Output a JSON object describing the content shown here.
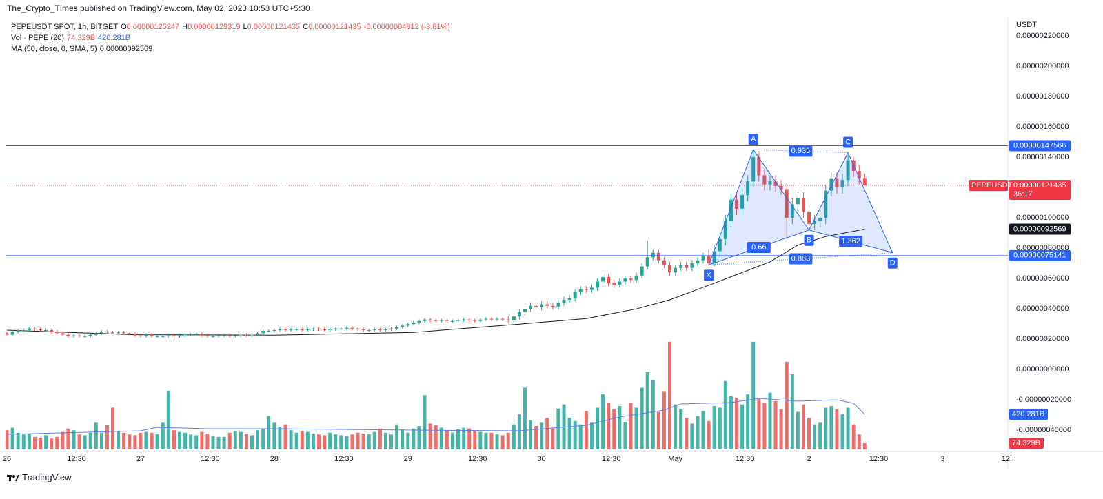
{
  "publisher": "The_Crypto_TImes published on TradingView.com, May 02, 2023 10:53 UTC+5:30",
  "legend": {
    "symbol": "PEPEUSDT SPOT, 1h, BITGET",
    "ohlc": [
      {
        "key": "O",
        "value": "0.00000126247"
      },
      {
        "key": "H",
        "value": "0.00000129319"
      },
      {
        "key": "L",
        "value": "0.00000121435"
      },
      {
        "key": "C",
        "value": "0.00000121435"
      }
    ],
    "change": "-0.00000004812 (-3.81%)",
    "volume": {
      "name": "Vol · PEPE (20)",
      "values": [
        "74.329B",
        "420.281B"
      ]
    },
    "ma": {
      "name": "MA (50, close, 0, SMA, 5)",
      "value": "0.00000092569"
    }
  },
  "chart_data": {
    "type": "candlestick",
    "y_unit": "USDT",
    "colors": {
      "up": "#26a69a",
      "down": "#ef5350"
    },
    "xlim": [
      -0.25,
      179.7
    ],
    "xticks": [
      {
        "value": 0,
        "label": "26"
      },
      {
        "value": 12.5,
        "label": "12:30"
      },
      {
        "value": 24,
        "label": "27"
      },
      {
        "value": 36.5,
        "label": "12:30"
      },
      {
        "value": 48,
        "label": "28"
      },
      {
        "value": 60.5,
        "label": "12:30"
      },
      {
        "value": 72,
        "label": "29"
      },
      {
        "value": 84.5,
        "label": "12:30"
      },
      {
        "value": 96,
        "label": "30"
      },
      {
        "value": 108.5,
        "label": "12:30"
      },
      {
        "value": 120,
        "label": "May"
      },
      {
        "value": 132.5,
        "label": "12:30"
      },
      {
        "value": 144,
        "label": "2"
      },
      {
        "value": 156.5,
        "label": "12:30"
      },
      {
        "value": 168,
        "label": "3"
      },
      {
        "value": 179.5,
        "label": "12:"
      }
    ],
    "ylim": [
      -5.4e-07,
      2.314e-06
    ],
    "yticks": [
      {
        "value": 2.2e-06,
        "label": "0.00000220000"
      },
      {
        "value": 2e-06,
        "label": "0.00000200000"
      },
      {
        "value": 1.8e-06,
        "label": "0.00000180000"
      },
      {
        "value": 1.6e-06,
        "label": "0.00000160000"
      },
      {
        "value": 1.4e-06,
        "label": "0.00000140000"
      },
      {
        "value": 1.2e-06,
        "label": "0.00000120000"
      },
      {
        "value": 1e-06,
        "label": "0.00000100000"
      },
      {
        "value": 8e-07,
        "label": "0.00000080000"
      },
      {
        "value": 6e-07,
        "label": "0.00000060000"
      },
      {
        "value": 4e-07,
        "label": "0.00000040000"
      },
      {
        "value": 2e-07,
        "label": "0.00000020000"
      },
      {
        "value": 0,
        "label": "0.00000000000"
      },
      {
        "value": -2e-07,
        "label": "-0.00000020000"
      },
      {
        "value": -4e-07,
        "label": "-0.00000040000"
      }
    ],
    "y2lim": [
      0,
      1330
    ],
    "grid": true,
    "x": [
      0,
      1,
      2,
      3,
      4,
      5,
      6,
      7,
      8,
      9,
      10,
      11,
      12,
      13,
      14,
      15,
      16,
      17,
      18,
      19,
      20,
      21,
      22,
      23,
      24,
      25,
      26,
      27,
      28,
      29,
      30,
      31,
      32,
      33,
      34,
      35,
      36,
      37,
      38,
      39,
      40,
      41,
      42,
      43,
      44,
      45,
      46,
      47,
      48,
      49,
      50,
      51,
      52,
      53,
      54,
      55,
      56,
      57,
      58,
      59,
      60,
      61,
      62,
      63,
      64,
      65,
      66,
      67,
      68,
      69,
      70,
      71,
      72,
      73,
      74,
      75,
      76,
      77,
      78,
      79,
      80,
      81,
      82,
      83,
      84,
      85,
      86,
      87,
      88,
      89,
      90,
      91,
      92,
      93,
      94,
      95,
      96,
      97,
      98,
      99,
      100,
      101,
      102,
      103,
      104,
      105,
      106,
      107,
      108,
      109,
      110,
      111,
      112,
      113,
      114,
      115,
      116,
      117,
      118,
      119,
      120,
      121,
      122,
      123,
      124,
      125,
      126,
      127,
      128,
      129,
      130,
      131,
      132,
      133,
      134,
      135,
      136,
      137,
      138,
      139,
      140,
      141,
      142,
      143,
      144,
      145,
      146,
      147,
      148,
      149,
      150,
      151,
      152,
      153,
      154
    ],
    "open": [
      2.4e-07,
      2.3e-07,
      2.5e-07,
      2.6e-07,
      2.6e-07,
      2.7e-07,
      2.65e-07,
      2.6e-07,
      2.6e-07,
      2.5e-07,
      2.4e-07,
      2.3e-07,
      2.2e-07,
      2.25e-07,
      2.2e-07,
      2.2e-07,
      2.3e-07,
      2.4e-07,
      2.5e-07,
      2.45e-07,
      2.4e-07,
      2.45e-07,
      2.4e-07,
      2.35e-07,
      2.25e-07,
      2.2e-07,
      2.3e-07,
      2.2e-07,
      2.2e-07,
      2.2e-07,
      2.25e-07,
      2.2e-07,
      2.25e-07,
      2.3e-07,
      2.3e-07,
      2.35e-07,
      2.25e-07,
      2.2e-07,
      2.2e-07,
      2.25e-07,
      2.25e-07,
      2.2e-07,
      2.25e-07,
      2.3e-07,
      2.25e-07,
      2.3e-07,
      2.4e-07,
      2.55e-07,
      2.55e-07,
      2.6e-07,
      2.65e-07,
      2.6e-07,
      2.65e-07,
      2.65e-07,
      2.6e-07,
      2.65e-07,
      2.7e-07,
      2.65e-07,
      2.6e-07,
      2.65e-07,
      2.7e-07,
      2.7e-07,
      2.75e-07,
      2.7e-07,
      2.65e-07,
      2.6e-07,
      2.6e-07,
      2.65e-07,
      2.6e-07,
      2.65e-07,
      2.7e-07,
      2.8e-07,
      2.9e-07,
      3e-07,
      3.1e-07,
      3.2e-07,
      3.3e-07,
      3.25e-07,
      3.2e-07,
      3.25e-07,
      3.2e-07,
      3.2e-07,
      3.25e-07,
      3.3e-07,
      3.25e-07,
      3.2e-07,
      3.3e-07,
      3.35e-07,
      3.3e-07,
      3.35e-07,
      3.3e-07,
      3.25e-07,
      3.5e-07,
      3.8e-07,
      4e-07,
      4.2e-07,
      4.1e-07,
      4.3e-07,
      4.2e-07,
      4.15e-07,
      4.4e-07,
      4.6e-07,
      4.7e-07,
      5.1e-07,
      5.3e-07,
      5.25e-07,
      5.4e-07,
      5.8e-07,
      6.1e-07,
      5.7e-07,
      5.6e-07,
      5.8e-07,
      6e-07,
      5.9e-07,
      6.2e-07,
      6.8e-07,
      7.4e-07,
      7.7e-07,
      7.2e-07,
      6.9e-07,
      6.4e-07,
      6.7e-07,
      6.9e-07,
      6.7e-07,
      7e-07,
      7.2e-07,
      7.5e-07,
      7e-07,
      7.8e-07,
      8.6e-07,
      9.8e-07,
      1.12e-06,
      1.06e-06,
      1.15e-06,
      1.24e-06,
      1.4e-06,
      1.28e-06,
      1.22e-06,
      1.24e-06,
      1.21e-06,
      1.19e-06,
      1e-06,
      1.09e-06,
      1.13e-06,
      1.04e-06,
      9.6e-07,
      9.8e-07,
      1e-06,
      1.18e-06,
      1.26e-06,
      1.2e-06,
      1.25e-06,
      1.38e-06,
      1.31e-06,
      1.26247e-06
    ],
    "high": [
      2.5e-07,
      2.6e-07,
      2.7e-07,
      2.7e-07,
      2.8e-07,
      2.8e-07,
      2.75e-07,
      2.7e-07,
      2.7e-07,
      2.6e-07,
      2.5e-07,
      2.4e-07,
      2.35e-07,
      2.35e-07,
      2.3e-07,
      2.4e-07,
      2.5e-07,
      2.6e-07,
      2.6e-07,
      2.55e-07,
      2.55e-07,
      2.55e-07,
      2.5e-07,
      2.45e-07,
      2.35e-07,
      2.4e-07,
      2.4e-07,
      2.3e-07,
      2.3e-07,
      2.35e-07,
      2.35e-07,
      2.35e-07,
      2.4e-07,
      2.4e-07,
      2.45e-07,
      2.45e-07,
      2.35e-07,
      2.3e-07,
      2.35e-07,
      2.35e-07,
      2.35e-07,
      2.35e-07,
      2.4e-07,
      2.4e-07,
      2.4e-07,
      2.5e-07,
      2.65e-07,
      2.65e-07,
      2.7e-07,
      2.75e-07,
      2.75e-07,
      2.75e-07,
      2.75e-07,
      2.75e-07,
      2.75e-07,
      2.8e-07,
      2.8e-07,
      2.75e-07,
      2.75e-07,
      2.8e-07,
      2.8e-07,
      2.85e-07,
      2.85e-07,
      2.8e-07,
      2.75e-07,
      2.7e-07,
      2.75e-07,
      2.75e-07,
      2.75e-07,
      2.8e-07,
      2.9e-07,
      3e-07,
      3.1e-07,
      3.2e-07,
      3.3e-07,
      3.4e-07,
      3.4e-07,
      3.35e-07,
      3.35e-07,
      3.35e-07,
      3.3e-07,
      3.35e-07,
      3.4e-07,
      3.4e-07,
      3.35e-07,
      3.4e-07,
      3.45e-07,
      3.45e-07,
      3.45e-07,
      3.45e-07,
      3.5e-07,
      3.7e-07,
      4e-07,
      4.2e-07,
      4.4e-07,
      4.4e-07,
      4.5e-07,
      4.5e-07,
      4.4e-07,
      4.6e-07,
      4.8e-07,
      4.9e-07,
      5.3e-07,
      5.5e-07,
      5.5e-07,
      5.6e-07,
      6e-07,
      6.3e-07,
      6.3e-07,
      5.9e-07,
      6e-07,
      6.2e-07,
      6.2e-07,
      6.4e-07,
      7e-07,
      8.5e-07,
      7.9e-07,
      7.9e-07,
      7.4e-07,
      7.1e-07,
      6.9e-07,
      7.1e-07,
      7.1e-07,
      7.2e-07,
      7.4e-07,
      7.7e-07,
      7.9e-07,
      8.2e-07,
      9e-07,
      1.02e-06,
      1.16e-06,
      1.16e-06,
      1.19e-06,
      1.28e-06,
      1.45e-06,
      1.44e-06,
      1.32e-06,
      1.28e-06,
      1.28e-06,
      1.25e-06,
      1.23e-06,
      1.13e-06,
      1.17e-06,
      1.17e-06,
      1.08e-06,
      1.02e-06,
      1.04e-06,
      1.22e-06,
      1.3e-06,
      1.3e-06,
      1.29e-06,
      1.43e-06,
      1.4e-06,
      1.35e-06,
      1.29319e-06
    ],
    "low": [
      2.2e-07,
      2.2e-07,
      2.4e-07,
      2.5e-07,
      2.5e-07,
      2.55e-07,
      2.5e-07,
      2.5e-07,
      2.4e-07,
      2.3e-07,
      2.2e-07,
      2.1e-07,
      2.1e-07,
      2.1e-07,
      2.1e-07,
      2.1e-07,
      2.2e-07,
      2.3e-07,
      2.35e-07,
      2.3e-07,
      2.3e-07,
      2.3e-07,
      2.25e-07,
      2.15e-07,
      2.1e-07,
      2.1e-07,
      2.1e-07,
      2.1e-07,
      2.1e-07,
      2.1e-07,
      2.1e-07,
      2.1e-07,
      2.15e-07,
      2.2e-07,
      2.2e-07,
      2.15e-07,
      2.1e-07,
      2.1e-07,
      2.1e-07,
      2.15e-07,
      2.1e-07,
      2.1e-07,
      2.15e-07,
      2.15e-07,
      2.15e-07,
      2.2e-07,
      2.3e-07,
      2.45e-07,
      2.45e-07,
      2.5e-07,
      2.5e-07,
      2.5e-07,
      2.55e-07,
      2.5e-07,
      2.5e-07,
      2.55e-07,
      2.55e-07,
      2.5e-07,
      2.5e-07,
      2.55e-07,
      2.6e-07,
      2.6e-07,
      2.6e-07,
      2.55e-07,
      2.5e-07,
      2.5e-07,
      2.5e-07,
      2.5e-07,
      2.5e-07,
      2.55e-07,
      2.6e-07,
      2.7e-07,
      2.8e-07,
      2.9e-07,
      3e-07,
      3.1e-07,
      3.15e-07,
      3.1e-07,
      3.1e-07,
      3.1e-07,
      3.1e-07,
      3.1e-07,
      3.15e-07,
      3.15e-07,
      3.1e-07,
      3.1e-07,
      3.2e-07,
      3.2e-07,
      3.2e-07,
      3.2e-07,
      3.05e-07,
      3.05e-07,
      3.3e-07,
      3.6e-07,
      3.8e-07,
      3.9e-07,
      3.9e-07,
      4e-07,
      3.95e-07,
      3.95e-07,
      4.2e-07,
      4.4e-07,
      4.5e-07,
      4.9e-07,
      5.05e-07,
      5.05e-07,
      5.2e-07,
      5.6e-07,
      5.5e-07,
      5.4e-07,
      5.4e-07,
      5.6e-07,
      5.7e-07,
      5.7e-07,
      6e-07,
      6.6e-07,
      7.2e-07,
      7e-07,
      6.7e-07,
      6.2e-07,
      6.2e-07,
      6.5e-07,
      6.5e-07,
      6.5e-07,
      6.8e-07,
      7e-07,
      6.86e-07,
      6.8e-07,
      7.4e-07,
      8.2e-07,
      9.4e-07,
      1.02e-06,
      1.02e-06,
      1.11e-06,
      1.2e-06,
      1.24e-06,
      1.18e-06,
      1.18e-06,
      1.17e-06,
      1.15e-06,
      8.6e-07,
      9.6e-07,
      1.05e-06,
      1e-06,
      9.2e-07,
      9.2e-07,
      9.4e-07,
      9.6e-07,
      1.14e-06,
      1.16e-06,
      1.16e-06,
      1.21e-06,
      1.27e-06,
      1.22e-06,
      1.21435e-06
    ],
    "close": [
      2.3e-07,
      2.5e-07,
      2.6e-07,
      2.6e-07,
      2.7e-07,
      2.65e-07,
      2.6e-07,
      2.6e-07,
      2.5e-07,
      2.4e-07,
      2.3e-07,
      2.2e-07,
      2.25e-07,
      2.2e-07,
      2.2e-07,
      2.3e-07,
      2.4e-07,
      2.5e-07,
      2.45e-07,
      2.4e-07,
      2.45e-07,
      2.4e-07,
      2.35e-07,
      2.25e-07,
      2.2e-07,
      2.3e-07,
      2.2e-07,
      2.2e-07,
      2.2e-07,
      2.25e-07,
      2.2e-07,
      2.25e-07,
      2.3e-07,
      2.3e-07,
      2.35e-07,
      2.25e-07,
      2.2e-07,
      2.2e-07,
      2.25e-07,
      2.25e-07,
      2.2e-07,
      2.25e-07,
      2.3e-07,
      2.25e-07,
      2.3e-07,
      2.4e-07,
      2.55e-07,
      2.55e-07,
      2.6e-07,
      2.65e-07,
      2.6e-07,
      2.65e-07,
      2.65e-07,
      2.6e-07,
      2.65e-07,
      2.7e-07,
      2.65e-07,
      2.6e-07,
      2.65e-07,
      2.7e-07,
      2.7e-07,
      2.75e-07,
      2.7e-07,
      2.65e-07,
      2.6e-07,
      2.6e-07,
      2.65e-07,
      2.6e-07,
      2.65e-07,
      2.7e-07,
      2.8e-07,
      2.9e-07,
      3e-07,
      3.1e-07,
      3.2e-07,
      3.3e-07,
      3.25e-07,
      3.2e-07,
      3.25e-07,
      3.2e-07,
      3.2e-07,
      3.25e-07,
      3.3e-07,
      3.25e-07,
      3.2e-07,
      3.3e-07,
      3.35e-07,
      3.3e-07,
      3.35e-07,
      3.3e-07,
      3.25e-07,
      3.5e-07,
      3.8e-07,
      4e-07,
      4.2e-07,
      4.1e-07,
      4.3e-07,
      4.2e-07,
      4.15e-07,
      4.4e-07,
      4.6e-07,
      4.7e-07,
      5.1e-07,
      5.3e-07,
      5.25e-07,
      5.4e-07,
      5.8e-07,
      6.1e-07,
      5.7e-07,
      5.6e-07,
      5.8e-07,
      6e-07,
      5.9e-07,
      6.2e-07,
      6.8e-07,
      7.4e-07,
      7.7e-07,
      7.2e-07,
      6.9e-07,
      6.4e-07,
      6.7e-07,
      6.9e-07,
      6.7e-07,
      7e-07,
      7.2e-07,
      7.5e-07,
      7e-07,
      7.8e-07,
      8.6e-07,
      9.8e-07,
      1.12e-06,
      1.06e-06,
      1.15e-06,
      1.24e-06,
      1.4e-06,
      1.28e-06,
      1.22e-06,
      1.24e-06,
      1.21e-06,
      1.19e-06,
      1e-06,
      1.09e-06,
      1.13e-06,
      1.04e-06,
      9.6e-07,
      9.8e-07,
      1e-06,
      1.18e-06,
      1.26e-06,
      1.2e-06,
      1.25e-06,
      1.38e-06,
      1.31e-06,
      1.26247e-06,
      1.21435e-06
    ],
    "volume": [
      230,
      260,
      200,
      180,
      190,
      150,
      140,
      170,
      130,
      150,
      210,
      250,
      230,
      180,
      170,
      200,
      320,
      200,
      290,
      500,
      220,
      200,
      180,
      170,
      200,
      210,
      200,
      180,
      320,
      700,
      230,
      210,
      200,
      180,
      170,
      210,
      190,
      160,
      150,
      150,
      200,
      220,
      210,
      190,
      170,
      230,
      250,
      400,
      320,
      270,
      300,
      230,
      200,
      220,
      210,
      190,
      180,
      170,
      200,
      180,
      170,
      160,
      180,
      200,
      190,
      180,
      210,
      250,
      200,
      180,
      300,
      240,
      200,
      250,
      280,
      650,
      310,
      290,
      260,
      230,
      200,
      240,
      260,
      250,
      220,
      210,
      200,
      200,
      180,
      170,
      200,
      300,
      420,
      740,
      350,
      280,
      320,
      380,
      250,
      490,
      540,
      380,
      340,
      300,
      460,
      320,
      500,
      660,
      560,
      480,
      520,
      330,
      560,
      500,
      740,
      925,
      830,
      450,
      690,
      1290,
      540,
      480,
      380,
      310,
      400,
      460,
      340,
      520,
      500,
      820,
      640,
      620,
      540,
      660,
      1290,
      620,
      560,
      680,
      580,
      480,
      1050,
      900,
      450,
      540,
      380,
      300,
      320,
      500,
      520,
      480,
      420,
      500,
      300,
      180,
      74.329
    ],
    "ma": {
      "color": "#131722",
      "x": [
        0,
        23,
        48,
        73,
        92,
        104,
        113,
        119,
        127,
        132,
        137,
        142,
        147,
        154
      ],
      "values": [
        2.6e-07,
        2.3e-07,
        2.27e-07,
        2.45e-07,
        3e-07,
        3.36e-07,
        4e-07,
        4.6e-07,
        5.7e-07,
        6.4e-07,
        7.1e-07,
        8.2e-07,
        8.77e-07,
        9.2569e-07
      ]
    },
    "volume_ma": {
      "color": "#5b7cf5",
      "axis": "y2",
      "x": [
        0,
        24,
        27,
        36,
        48,
        73,
        92,
        104,
        110,
        118,
        121,
        125,
        130,
        135,
        142,
        149,
        152,
        154
      ],
      "values": [
        182,
        223,
        264,
        248,
        248,
        231,
        223,
        289,
        388,
        471,
        545,
        553,
        562,
        611,
        578,
        595,
        553,
        420.281
      ]
    },
    "levels": [
      {
        "value": 1.47566e-06,
        "label": "0.00000147566"
      },
      {
        "value": 7.5141e-07,
        "label": "0.00000075141"
      }
    ],
    "level_color": "#2962ff",
    "last_price": {
      "name": "PEPEUSDT",
      "value": 1.21435e-06,
      "label": "0.00000121435",
      "countdown": "36:17"
    },
    "pattern": {
      "color": "#2962ff",
      "points": [
        {
          "label": "X",
          "x": 126,
          "y": 6.9e-07
        },
        {
          "label": "A",
          "x": 134,
          "y": 1.45e-06
        },
        {
          "label": "B",
          "x": 144,
          "y": 9.2e-07
        },
        {
          "label": "C",
          "x": 151,
          "y": 1.43e-06
        },
        {
          "label": "D",
          "x": 159,
          "y": 7.7e-07
        }
      ],
      "ratios": [
        "0.66",
        "0.935",
        "1.362",
        "0.883"
      ]
    }
  },
  "footer": "TradingView"
}
